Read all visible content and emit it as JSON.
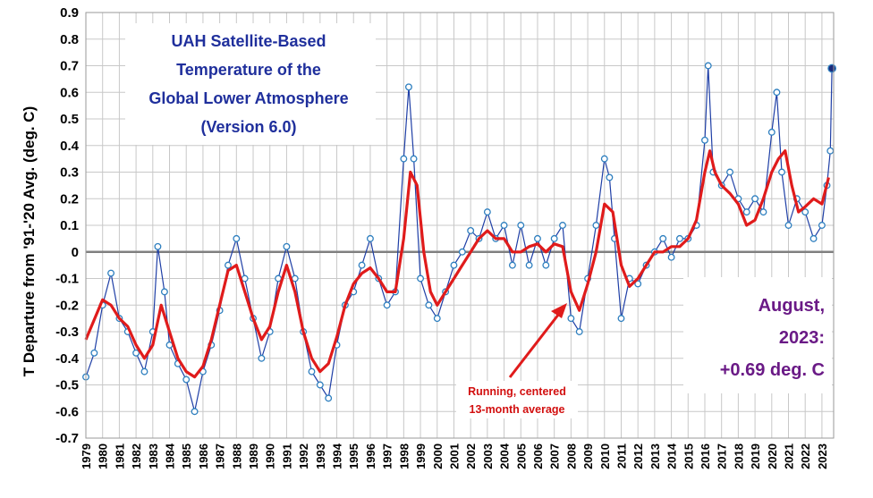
{
  "chart_data": {
    "type": "line",
    "title_lines": [
      "UAH Satellite-Based",
      "Temperature of the",
      "Global Lower Atmosphere",
      "(Version 6.0)"
    ],
    "ylabel": "T Departure from '91-'20 Avg. (deg. C)",
    "xlabel": "",
    "ylim": [
      -0.7,
      0.9
    ],
    "yticks": [
      "0.9",
      "0.8",
      "0.7",
      "0.6",
      "0.5",
      "0.4",
      "0.3",
      "0.2",
      "0.1",
      "0",
      "-0.1",
      "-0.2",
      "-0.3",
      "-0.4",
      "-0.5",
      "-0.6",
      "-0.7"
    ],
    "xlim": [
      1979.0,
      2023.7
    ],
    "xticks": [
      "1979",
      "1980",
      "1981",
      "1982",
      "1983",
      "1984",
      "1985",
      "1986",
      "1987",
      "1988",
      "1989",
      "1990",
      "1991",
      "1992",
      "1993",
      "1994",
      "1995",
      "1996",
      "1997",
      "1998",
      "1999",
      "2000",
      "2001",
      "2002",
      "2003",
      "2004",
      "2005",
      "2006",
      "2007",
      "2008",
      "2009",
      "2010",
      "2011",
      "2012",
      "2013",
      "2014",
      "2015",
      "2016",
      "2017",
      "2018",
      "2019",
      "2020",
      "2021",
      "2022",
      "2023"
    ],
    "grid": true,
    "latest_label_lines": [
      "August,",
      "2023:",
      "+0.69 deg. C"
    ],
    "annotation_lines": [
      "Running, centered",
      "13-month average"
    ],
    "colors": {
      "monthly_line": "#1f3fa6",
      "monthly_marker": "#2e7fbf",
      "running_average": "#e01b1b",
      "zero_line": "#808080",
      "grid": "#c8c8c8",
      "title": "#1f2f9c",
      "latest_label": "#6a1a86",
      "annotation": "#d20f0f",
      "latest_marker": "#1a2a7a"
    },
    "series": [
      {
        "name": "monthly",
        "x": [
          1979.0,
          1979.5,
          1980.0,
          1980.5,
          1981.0,
          1981.5,
          1982.0,
          1982.5,
          1983.0,
          1983.3,
          1983.7,
          1984.0,
          1984.5,
          1985.0,
          1985.5,
          1986.0,
          1986.5,
          1987.0,
          1987.5,
          1988.0,
          1988.5,
          1989.0,
          1989.5,
          1990.0,
          1990.5,
          1991.0,
          1991.5,
          1992.0,
          1992.5,
          1993.0,
          1993.5,
          1994.0,
          1994.5,
          1995.0,
          1995.5,
          1996.0,
          1996.5,
          1997.0,
          1997.5,
          1998.0,
          1998.3,
          1998.6,
          1999.0,
          1999.5,
          2000.0,
          2000.5,
          2001.0,
          2001.5,
          2002.0,
          2002.5,
          2003.0,
          2003.5,
          2004.0,
          2004.5,
          2005.0,
          2005.5,
          2006.0,
          2006.5,
          2007.0,
          2007.5,
          2008.0,
          2008.5,
          2009.0,
          2009.5,
          2010.0,
          2010.3,
          2010.6,
          2011.0,
          2011.5,
          2012.0,
          2012.5,
          2013.0,
          2013.5,
          2014.0,
          2014.5,
          2015.0,
          2015.5,
          2016.0,
          2016.2,
          2016.5,
          2017.0,
          2017.5,
          2018.0,
          2018.5,
          2019.0,
          2019.5,
          2020.0,
          2020.3,
          2020.6,
          2021.0,
          2021.5,
          2022.0,
          2022.5,
          2023.0,
          2023.3,
          2023.5,
          2023.6
        ],
        "values": [
          -0.47,
          -0.38,
          -0.2,
          -0.08,
          -0.25,
          -0.3,
          -0.38,
          -0.45,
          -0.3,
          0.02,
          -0.15,
          -0.35,
          -0.42,
          -0.48,
          -0.6,
          -0.45,
          -0.35,
          -0.22,
          -0.05,
          0.05,
          -0.1,
          -0.25,
          -0.4,
          -0.3,
          -0.1,
          0.02,
          -0.1,
          -0.3,
          -0.45,
          -0.5,
          -0.55,
          -0.35,
          -0.2,
          -0.15,
          -0.05,
          0.05,
          -0.1,
          -0.2,
          -0.15,
          0.35,
          0.62,
          0.35,
          -0.1,
          -0.2,
          -0.25,
          -0.15,
          -0.05,
          0.0,
          0.08,
          0.05,
          0.15,
          0.05,
          0.1,
          -0.05,
          0.1,
          -0.05,
          0.05,
          -0.05,
          0.05,
          0.1,
          -0.25,
          -0.3,
          -0.1,
          0.1,
          0.35,
          0.28,
          0.05,
          -0.25,
          -0.1,
          -0.12,
          -0.05,
          0.0,
          0.05,
          -0.02,
          0.05,
          0.05,
          0.1,
          0.42,
          0.7,
          0.3,
          0.25,
          0.3,
          0.2,
          0.15,
          0.2,
          0.15,
          0.45,
          0.6,
          0.3,
          0.1,
          0.2,
          0.15,
          0.05,
          0.1,
          0.25,
          0.38,
          0.69
        ]
      },
      {
        "name": "running average",
        "x": [
          1979.0,
          1980.0,
          1980.5,
          1981.0,
          1981.5,
          1982.0,
          1982.5,
          1983.0,
          1983.5,
          1984.0,
          1984.5,
          1985.0,
          1985.5,
          1986.0,
          1986.5,
          1987.0,
          1987.5,
          1988.0,
          1988.5,
          1989.0,
          1989.5,
          1990.0,
          1990.5,
          1991.0,
          1991.5,
          1992.0,
          1992.5,
          1993.0,
          1993.5,
          1994.0,
          1994.5,
          1995.0,
          1995.5,
          1996.0,
          1996.5,
          1997.0,
          1997.5,
          1998.0,
          1998.4,
          1998.8,
          1999.2,
          1999.6,
          2000.0,
          2000.5,
          2001.0,
          2001.5,
          2002.0,
          2002.5,
          2003.0,
          2003.5,
          2004.0,
          2004.5,
          2005.0,
          2005.5,
          2006.0,
          2006.5,
          2007.0,
          2007.5,
          2008.0,
          2008.5,
          2009.0,
          2009.5,
          2010.0,
          2010.5,
          2011.0,
          2011.5,
          2012.0,
          2012.5,
          2013.0,
          2013.5,
          2014.0,
          2014.5,
          2015.0,
          2015.5,
          2016.0,
          2016.3,
          2016.6,
          2017.0,
          2017.5,
          2018.0,
          2018.5,
          2019.0,
          2019.5,
          2020.0,
          2020.4,
          2020.8,
          2021.2,
          2021.6,
          2022.0,
          2022.5,
          2023.0,
          2023.4
        ],
        "values": [
          -0.33,
          -0.18,
          -0.2,
          -0.25,
          -0.28,
          -0.35,
          -0.4,
          -0.35,
          -0.2,
          -0.3,
          -0.4,
          -0.45,
          -0.47,
          -0.43,
          -0.33,
          -0.2,
          -0.07,
          -0.05,
          -0.15,
          -0.25,
          -0.33,
          -0.28,
          -0.15,
          -0.05,
          -0.15,
          -0.3,
          -0.4,
          -0.45,
          -0.42,
          -0.32,
          -0.2,
          -0.12,
          -0.08,
          -0.06,
          -0.1,
          -0.15,
          -0.15,
          0.05,
          0.3,
          0.25,
          0.0,
          -0.15,
          -0.2,
          -0.15,
          -0.1,
          -0.05,
          0.0,
          0.05,
          0.08,
          0.05,
          0.05,
          0.0,
          0.0,
          0.02,
          0.03,
          0.0,
          0.03,
          0.02,
          -0.15,
          -0.22,
          -0.12,
          0.0,
          0.18,
          0.15,
          -0.05,
          -0.13,
          -0.1,
          -0.05,
          0.0,
          0.0,
          0.02,
          0.02,
          0.05,
          0.12,
          0.3,
          0.38,
          0.3,
          0.25,
          0.22,
          0.18,
          0.1,
          0.12,
          0.2,
          0.3,
          0.35,
          0.38,
          0.25,
          0.15,
          0.17,
          0.2,
          0.18,
          0.28
        ]
      }
    ],
    "latest_point": {
      "x": 2023.6,
      "y": 0.69
    }
  }
}
